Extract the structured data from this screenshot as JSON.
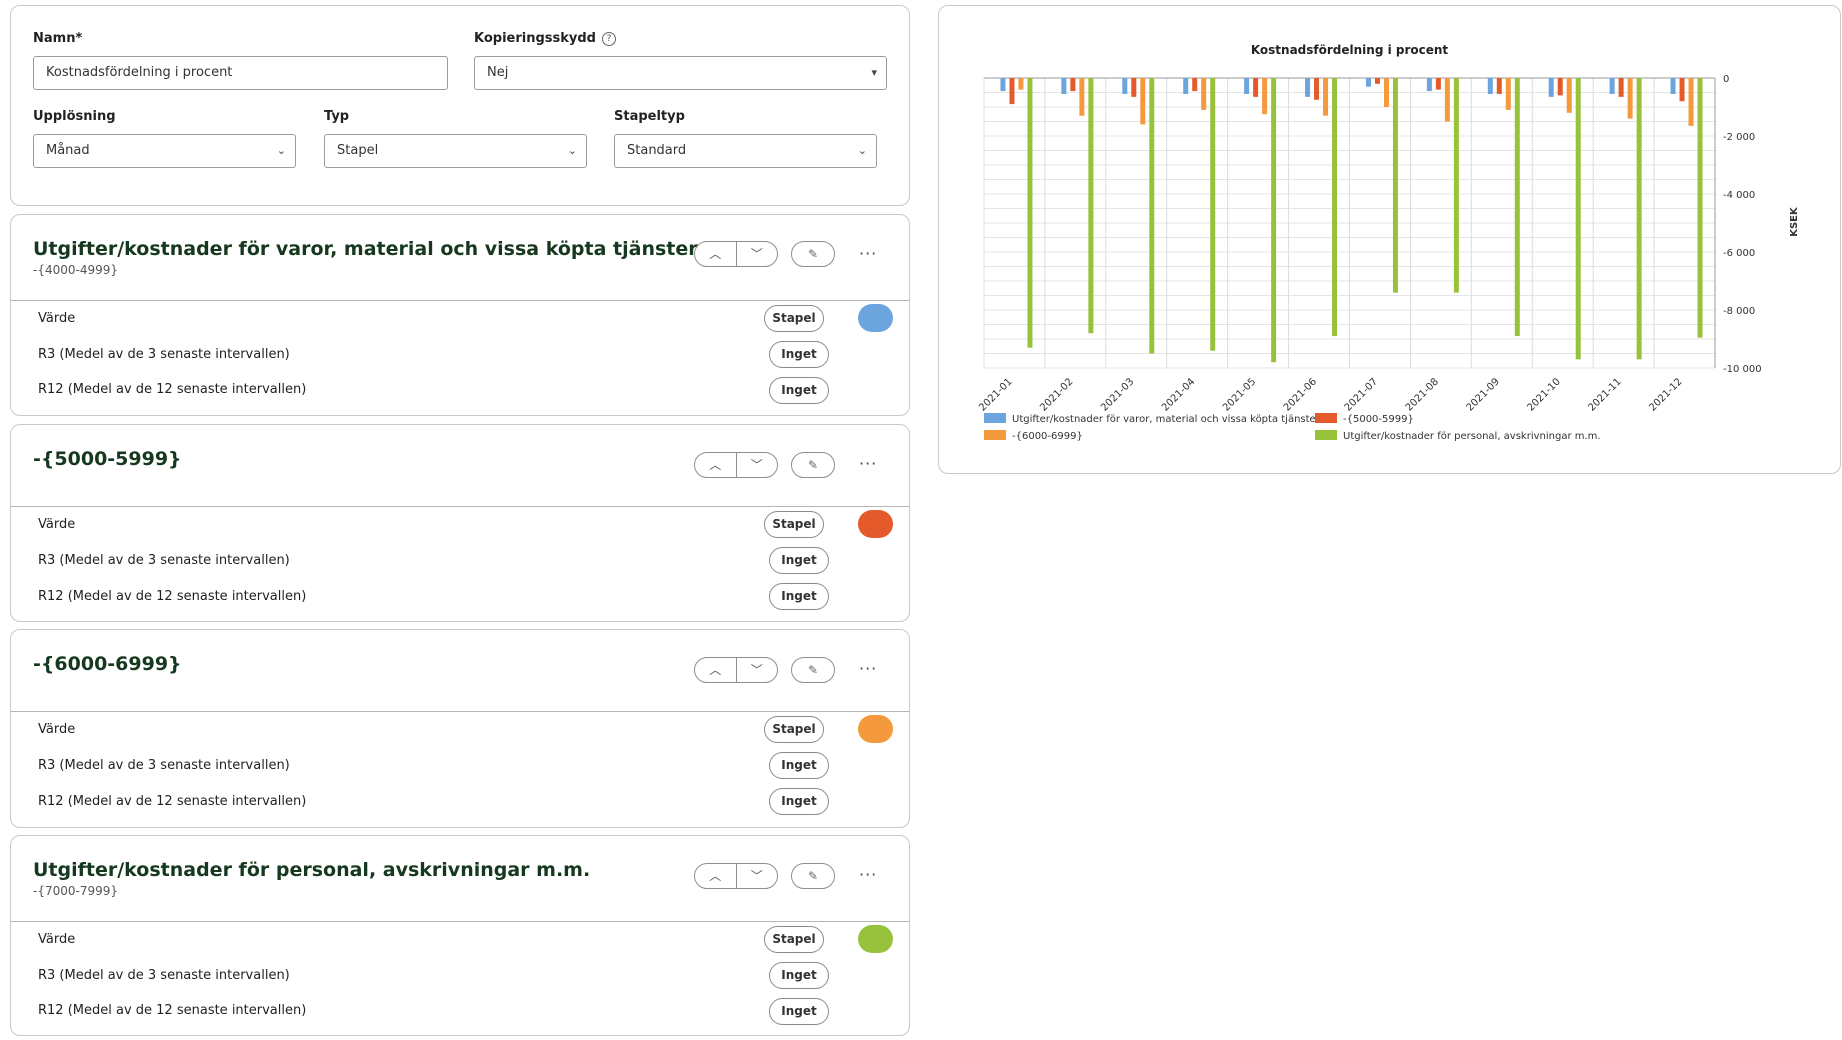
{
  "form": {
    "name_label": "Namn*",
    "name_value": "Kostnadsfördelning i procent",
    "copy_label": "Kopieringsskydd",
    "copy_value": "Nej",
    "resolution_label": "Upplösning",
    "resolution_value": "Månad",
    "type_label": "Typ",
    "type_value": "Stapel",
    "stacktype_label": "Stapeltyp",
    "stacktype_value": "Standard"
  },
  "icons": {
    "help": "question-circle-icon",
    "chevron_down": "chevron-down-icon",
    "chevron_up": "chevron-up-icon",
    "edit": "pencil-icon",
    "more": "ellipsis-icon"
  },
  "series_rows": {
    "value_label": "Värde",
    "r3_label": "R3 (Medel av de 3 senaste intervallen)",
    "r12_label": "R12 (Medel av de 12 senaste intervallen)",
    "stapel": "Stapel",
    "inget": "Inget"
  },
  "series": [
    {
      "title": "Utgifter/kostnader för varor, material och vissa köpta tjänster",
      "subtitle": "-{4000-4999}",
      "color": "#6ca4de"
    },
    {
      "title": "-{5000-5999}",
      "subtitle": "",
      "color": "#e45a2a"
    },
    {
      "title": "-{6000-6999}",
      "subtitle": "",
      "color": "#f59a3c"
    },
    {
      "title": "Utgifter/kostnader för personal, avskrivningar m.m.",
      "subtitle": "-{7000-7999}",
      "color": "#98c23c"
    }
  ],
  "chart_data": {
    "type": "bar",
    "title": "Kostnadsfördelning i procent",
    "ylabel": "KSEK",
    "xlabel": "",
    "ylim": [
      -10000,
      0
    ],
    "yticks": [
      "0",
      "-2 000",
      "-4 000",
      "-6 000",
      "-8 000",
      "-10 000"
    ],
    "grid": true,
    "legend_position": "bottom",
    "categories": [
      "2021-01",
      "2021-02",
      "2021-03",
      "2021-04",
      "2021-05",
      "2021-06",
      "2021-07",
      "2021-08",
      "2021-09",
      "2021-10",
      "2021-11",
      "2021-12"
    ],
    "series": [
      {
        "name": "Utgifter/kostnader för varor, material och vissa köpta tjänster",
        "color": "#6ca4de",
        "values": [
          -450,
          -550,
          -550,
          -550,
          -550,
          -650,
          -300,
          -450,
          -550,
          -650,
          -550,
          -550
        ]
      },
      {
        "name": "-{5000-5999}",
        "color": "#e45a2a",
        "values": [
          -900,
          -450,
          -650,
          -450,
          -650,
          -750,
          -200,
          -400,
          -550,
          -600,
          -650,
          -800
        ]
      },
      {
        "name": "-{6000-6999}",
        "color": "#f59a3c",
        "values": [
          -400,
          -1300,
          -1600,
          -1100,
          -1250,
          -1300,
          -1000,
          -1500,
          -1100,
          -1200,
          -1400,
          -1650
        ]
      },
      {
        "name": "Utgifter/kostnader för personal, avskrivningar m.m.",
        "color": "#98c23c",
        "values": [
          -9300,
          -8800,
          -9500,
          -9400,
          -9800,
          -8900,
          -7400,
          -7400,
          -8900,
          -9700,
          -9700,
          -8950
        ]
      }
    ]
  }
}
